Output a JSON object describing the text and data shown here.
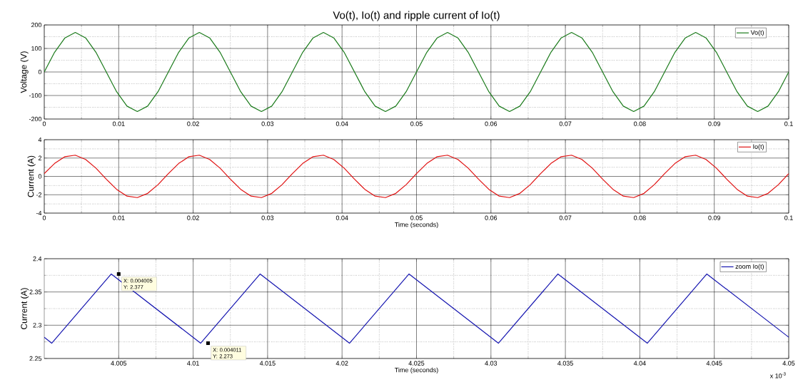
{
  "chart_data": [
    {
      "type": "line",
      "title": "Vo(t), Io(t) and ripple current of Io(t)",
      "ylabel": "Voltage (V)",
      "x": [
        0,
        0.00139,
        0.00278,
        0.00417,
        0.00556,
        0.00694,
        0.00833,
        0.00972,
        0.01111,
        0.0125,
        0.01389,
        0.01528,
        0.01667,
        0.01806,
        0.01944,
        0.02083,
        0.02222,
        0.02361,
        0.025,
        0.02639,
        0.02778,
        0.02917,
        0.03056,
        0.03194,
        0.03333,
        0.03472,
        0.03611,
        0.0375,
        0.03889,
        0.04028,
        0.04167,
        0.04306,
        0.04444,
        0.04583,
        0.04722,
        0.04861,
        0.05,
        0.05139,
        0.05278,
        0.05417,
        0.05556,
        0.05694,
        0.05833,
        0.05972,
        0.06111,
        0.0625,
        0.06389,
        0.06528,
        0.06667,
        0.06806,
        0.06944,
        0.07083,
        0.07222,
        0.07361,
        0.075,
        0.07639,
        0.07778,
        0.07917,
        0.08056,
        0.08194,
        0.08333,
        0.08472,
        0.08611,
        0.0875,
        0.08889,
        0.09028,
        0.09167,
        0.09306,
        0.09444,
        0.09583,
        0.09722,
        0.09861,
        0.1
      ],
      "series": [
        {
          "name": "Vo(t)",
          "color": "#1a7a1a",
          "values": [
            0,
            84,
            145,
            168,
            145,
            84,
            0,
            -84,
            -145,
            -168,
            -145,
            -84,
            0,
            84,
            145,
            168,
            145,
            84,
            0,
            -84,
            -145,
            -168,
            -145,
            -84,
            0,
            84,
            145,
            168,
            145,
            84,
            0,
            -84,
            -145,
            -168,
            -145,
            -84,
            0,
            84,
            145,
            168,
            145,
            84,
            0,
            -84,
            -145,
            -168,
            -145,
            -84,
            0,
            84,
            145,
            168,
            145,
            84,
            0,
            -84,
            -145,
            -168,
            -145,
            -84,
            0,
            84,
            145,
            168,
            145,
            84,
            0,
            -84,
            -145,
            -168,
            -145,
            -84,
            0
          ]
        }
      ],
      "xlim": [
        0,
        0.1
      ],
      "xticks": [
        0,
        0.01,
        0.02,
        0.03,
        0.04,
        0.05,
        0.06,
        0.07,
        0.08,
        0.09,
        0.1
      ],
      "ylim": [
        -200,
        200
      ],
      "yticks": [
        -200,
        -100,
        0,
        100,
        200
      ],
      "grid": true,
      "legend": "top right"
    },
    {
      "type": "line",
      "xlabel": "Time (seconds)",
      "ylabel": "Current (A)",
      "x": [
        0,
        0.00139,
        0.00278,
        0.00417,
        0.00556,
        0.00694,
        0.00833,
        0.00972,
        0.01111,
        0.0125,
        0.01389,
        0.01528,
        0.01667,
        0.01806,
        0.01944,
        0.02083,
        0.02222,
        0.02361,
        0.025,
        0.02639,
        0.02778,
        0.02917,
        0.03056,
        0.03194,
        0.03333,
        0.03472,
        0.03611,
        0.0375,
        0.03889,
        0.04028,
        0.04167,
        0.04306,
        0.04444,
        0.04583,
        0.04722,
        0.04861,
        0.05,
        0.05139,
        0.05278,
        0.05417,
        0.05556,
        0.05694,
        0.05833,
        0.05972,
        0.06111,
        0.0625,
        0.06389,
        0.06528,
        0.06667,
        0.06806,
        0.06944,
        0.07083,
        0.07222,
        0.07361,
        0.075,
        0.07639,
        0.07778,
        0.07917,
        0.08056,
        0.08194,
        0.08333,
        0.08472,
        0.08611,
        0.0875,
        0.08889,
        0.09028,
        0.09167,
        0.09306,
        0.09444,
        0.09583,
        0.09722,
        0.09861,
        0.1
      ],
      "series": [
        {
          "name": "Io(t)",
          "color": "#e01010",
          "values": [
            0.3,
            1.41,
            2.15,
            2.31,
            1.85,
            0.9,
            -0.3,
            -1.41,
            -2.15,
            -2.31,
            -1.85,
            -0.9,
            0.3,
            1.41,
            2.15,
            2.31,
            1.85,
            0.9,
            -0.3,
            -1.41,
            -2.15,
            -2.31,
            -1.85,
            -0.9,
            0.3,
            1.41,
            2.15,
            2.31,
            1.85,
            0.9,
            -0.3,
            -1.41,
            -2.15,
            -2.31,
            -1.85,
            -0.9,
            0.3,
            1.41,
            2.15,
            2.31,
            1.85,
            0.9,
            -0.3,
            -1.41,
            -2.15,
            -2.31,
            -1.85,
            -0.9,
            0.3,
            1.41,
            2.15,
            2.31,
            1.85,
            0.9,
            -0.3,
            -1.41,
            -2.15,
            -2.31,
            -1.85,
            -0.9,
            0.3,
            1.41,
            2.15,
            2.31,
            1.85,
            0.9,
            -0.3,
            -1.41,
            -2.15,
            -2.31,
            -1.85,
            -0.9,
            0.3
          ]
        }
      ],
      "xlim": [
        0,
        0.1
      ],
      "xticks": [
        0,
        0.01,
        0.02,
        0.03,
        0.04,
        0.05,
        0.06,
        0.07,
        0.08,
        0.09,
        0.1
      ],
      "ylim": [
        -4,
        4
      ],
      "yticks": [
        -4,
        -2,
        0,
        2,
        4
      ],
      "grid": true,
      "legend": "top right"
    },
    {
      "type": "line",
      "xlabel": "Time (seconds)",
      "ylabel": "Current (A)",
      "x": [
        4.0,
        4.0005,
        4.0045,
        4.0105,
        4.0145,
        4.0205,
        4.0245,
        4.0305,
        4.0345,
        4.0405,
        4.0445,
        4.05
      ],
      "series": [
        {
          "name": "zoom Io(t)",
          "color": "#1515b0",
          "values": [
            2.282,
            2.273,
            2.377,
            2.273,
            2.377,
            2.273,
            2.377,
            2.273,
            2.377,
            2.273,
            2.377,
            2.282
          ]
        }
      ],
      "xlim": [
        4.0,
        4.05
      ],
      "xticks": [
        4.005,
        4.01,
        4.015,
        4.02,
        4.025,
        4.03,
        4.035,
        4.04,
        4.045,
        4.05
      ],
      "ylim": [
        2.25,
        2.4
      ],
      "yticks": [
        2.25,
        2.3,
        2.35,
        2.4
      ],
      "grid": true,
      "legend": "top right",
      "annotations": [
        {
          "text": "X: 0.004005 Y: 2.377",
          "x": 4.005,
          "y": 2.377
        },
        {
          "text": "X: 0.004011 Y: 2.273",
          "x": 4.011,
          "y": 2.273
        },
        "x 10$^{-3}$"
      ]
    }
  ]
}
